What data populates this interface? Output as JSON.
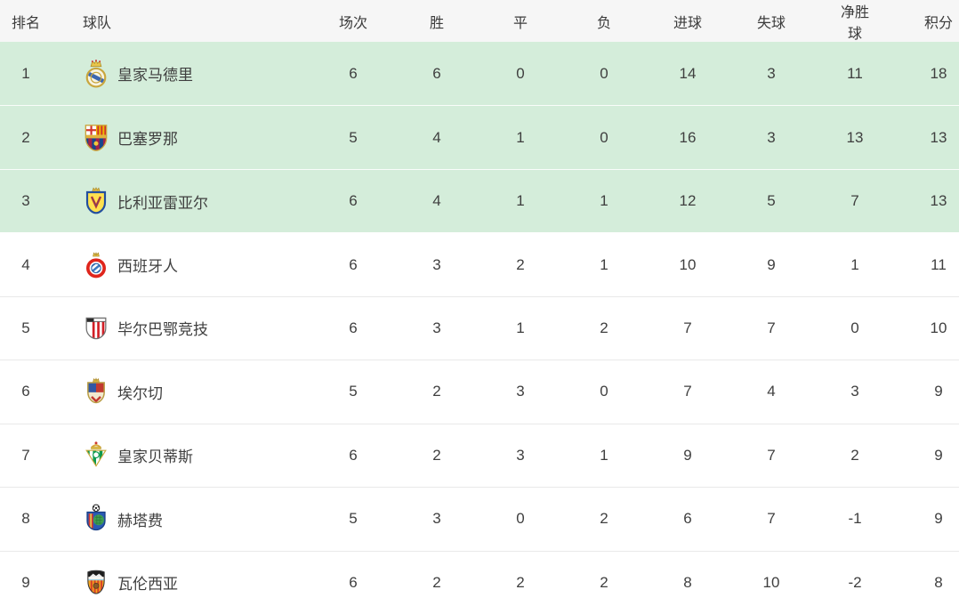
{
  "table": {
    "columns": [
      {
        "key": "rank",
        "label": "排名"
      },
      {
        "key": "team",
        "label": "球队"
      },
      {
        "key": "played",
        "label": "场次"
      },
      {
        "key": "wins",
        "label": "胜"
      },
      {
        "key": "draws",
        "label": "平"
      },
      {
        "key": "losses",
        "label": "负"
      },
      {
        "key": "goals_for",
        "label": "进球"
      },
      {
        "key": "goals_against",
        "label": "失球"
      },
      {
        "key": "goal_diff",
        "label": "净胜球"
      },
      {
        "key": "points",
        "label": "积分"
      }
    ],
    "highlight_color": "#d4edda",
    "header_bg_color": "#f6f6f6",
    "rows": [
      {
        "rank": "1",
        "team": "皇家马德里",
        "badge": "real-madrid",
        "played": "6",
        "wins": "6",
        "draws": "0",
        "losses": "0",
        "goals_for": "14",
        "goals_against": "3",
        "goal_diff": "11",
        "points": "18",
        "highlighted": true
      },
      {
        "rank": "2",
        "team": "巴塞罗那",
        "badge": "barcelona",
        "played": "5",
        "wins": "4",
        "draws": "1",
        "losses": "0",
        "goals_for": "16",
        "goals_against": "3",
        "goal_diff": "13",
        "points": "13",
        "highlighted": true
      },
      {
        "rank": "3",
        "team": "比利亚雷亚尔",
        "badge": "villarreal",
        "played": "6",
        "wins": "4",
        "draws": "1",
        "losses": "1",
        "goals_for": "12",
        "goals_against": "5",
        "goal_diff": "7",
        "points": "13",
        "highlighted": true
      },
      {
        "rank": "4",
        "team": "西班牙人",
        "badge": "espanyol",
        "played": "6",
        "wins": "3",
        "draws": "2",
        "losses": "1",
        "goals_for": "10",
        "goals_against": "9",
        "goal_diff": "1",
        "points": "11",
        "highlighted": false
      },
      {
        "rank": "5",
        "team": "毕尔巴鄂竞技",
        "badge": "athletic-bilbao",
        "played": "6",
        "wins": "3",
        "draws": "1",
        "losses": "2",
        "goals_for": "7",
        "goals_against": "7",
        "goal_diff": "0",
        "points": "10",
        "highlighted": false
      },
      {
        "rank": "6",
        "team": "埃尔切",
        "badge": "elche",
        "played": "5",
        "wins": "2",
        "draws": "3",
        "losses": "0",
        "goals_for": "7",
        "goals_against": "4",
        "goal_diff": "3",
        "points": "9",
        "highlighted": false
      },
      {
        "rank": "7",
        "team": "皇家贝蒂斯",
        "badge": "real-betis",
        "played": "6",
        "wins": "2",
        "draws": "3",
        "losses": "1",
        "goals_for": "9",
        "goals_against": "7",
        "goal_diff": "2",
        "points": "9",
        "highlighted": false
      },
      {
        "rank": "8",
        "team": "赫塔费",
        "badge": "getafe",
        "played": "5",
        "wins": "3",
        "draws": "0",
        "losses": "2",
        "goals_for": "6",
        "goals_against": "7",
        "goal_diff": "-1",
        "points": "9",
        "highlighted": false
      },
      {
        "rank": "9",
        "team": "瓦伦西亚",
        "badge": "valencia",
        "played": "6",
        "wins": "2",
        "draws": "2",
        "losses": "2",
        "goals_for": "8",
        "goals_against": "10",
        "goal_diff": "-2",
        "points": "8",
        "highlighted": false
      }
    ]
  }
}
